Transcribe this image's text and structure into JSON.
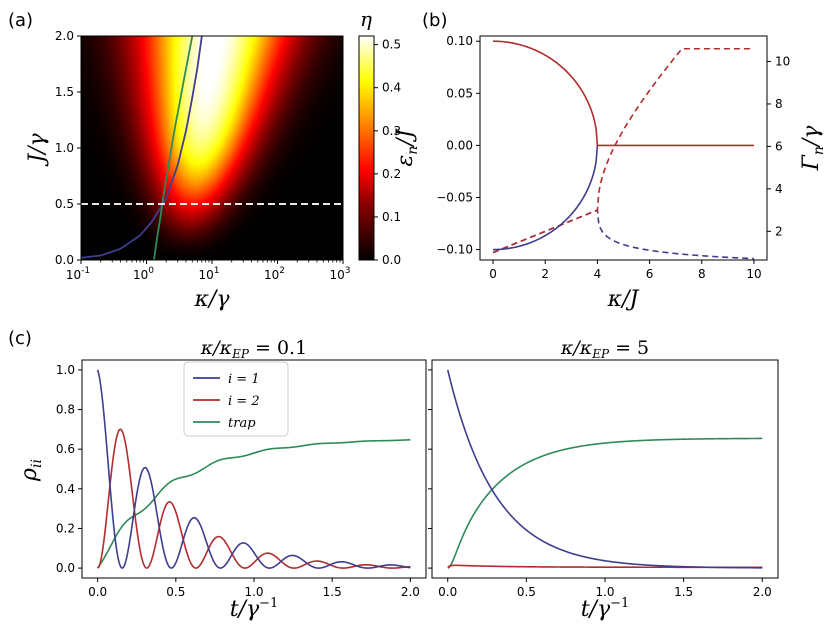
{
  "panels": {
    "a": "(a)",
    "b": "(b)",
    "c": "(c)"
  },
  "colors": {
    "blue": "#3f3d8f",
    "red": "#b22c2c",
    "green": "#2e8b57",
    "dashed_line": "#e8e8e8"
  },
  "chart_data": [
    {
      "id": "a",
      "type": "heatmap",
      "xlabel": "κ/γ",
      "ylabel": "J/γ",
      "colorbar_label": "η",
      "xscale": "log",
      "xlim": [
        0.1,
        1000
      ],
      "ylim": [
        0,
        2.0
      ],
      "xticks": [
        "10",
        "10",
        "10",
        "10",
        "10"
      ],
      "xtick_exps": [
        "-1",
        "0",
        "1",
        "2",
        "3"
      ],
      "yticks": [
        "0.0",
        "0.5",
        "1.0",
        "1.5",
        "2.0"
      ],
      "colorbar_ticks": [
        "0.0",
        "0.1",
        "0.2",
        "0.3",
        "0.4",
        "0.5"
      ],
      "colorbar_range": [
        0,
        0.52
      ],
      "colormap": "hot",
      "horizontal_dashed_line": 0.5,
      "curves": [
        {
          "color": "blue",
          "points": [
            [
              0.1,
              0.02
            ],
            [
              0.2,
              0.04
            ],
            [
              0.4,
              0.1
            ],
            [
              0.8,
              0.22
            ],
            [
              1.2,
              0.34
            ],
            [
              2.0,
              0.55
            ],
            [
              3.0,
              0.85
            ],
            [
              4.0,
              1.15
            ],
            [
              5.0,
              1.45
            ],
            [
              6.0,
              1.72
            ],
            [
              7.0,
              2.0
            ]
          ]
        },
        {
          "color": "green",
          "points": [
            [
              1.3,
              0.0
            ],
            [
              1.45,
              0.2
            ],
            [
              1.65,
              0.4
            ],
            [
              1.85,
              0.6
            ],
            [
              2.1,
              0.8
            ],
            [
              2.4,
              1.0
            ],
            [
              2.75,
              1.2
            ],
            [
              3.2,
              1.4
            ],
            [
              3.7,
              1.6
            ],
            [
              4.3,
              1.8
            ],
            [
              5.0,
              2.0
            ]
          ]
        }
      ]
    },
    {
      "id": "b",
      "type": "line",
      "xlabel": "κ/J",
      "ylabel": "ε_n/J",
      "ylabel_right": "Γ_n/γ",
      "xlim": [
        -0.5,
        10.5
      ],
      "ylim": [
        -0.11,
        0.105
      ],
      "ylim_right": [
        0.65,
        11.2
      ],
      "xticks": [
        "0",
        "2",
        "4",
        "6",
        "8",
        "10"
      ],
      "yticks": [
        "-0.10",
        "-0.05",
        "0.00",
        "0.05",
        "0.10"
      ],
      "yticks_right": [
        "2",
        "4",
        "6",
        "8",
        "10"
      ],
      "exceptional_point": 4,
      "series": [
        {
          "color": "red",
          "style": "solid",
          "axis": "left",
          "formula": "epsilon_upper"
        },
        {
          "color": "blue",
          "style": "solid",
          "axis": "left",
          "formula": "epsilon_lower"
        },
        {
          "color": "red",
          "style": "dashed",
          "axis": "right",
          "formula": "gamma_upper"
        },
        {
          "color": "blue",
          "style": "dashed",
          "axis": "right",
          "formula": "gamma_lower"
        }
      ]
    },
    {
      "id": "c1",
      "type": "line",
      "title": "κ/κ",
      "title_sub": "EP",
      "title_value": " = 0.1",
      "xlabel": "t/γ",
      "xlabel_sup": "−1",
      "ylabel": "ρ",
      "ylabel_sub": "ii",
      "xlim": [
        -0.1,
        2.1
      ],
      "ylim": [
        -0.05,
        1.05
      ],
      "xticks": [
        "0.0",
        "0.5",
        "1.0",
        "1.5",
        "2.0"
      ],
      "yticks": [
        "0.0",
        "0.2",
        "0.4",
        "0.6",
        "0.8",
        "1.0"
      ],
      "legend": {
        "placement": "upper-center",
        "entries": [
          {
            "label": "i = 1",
            "color": "blue"
          },
          {
            "label": "i = 2",
            "color": "red"
          },
          {
            "label": "trap",
            "color": "green"
          }
        ]
      },
      "series": [
        {
          "name": "i = 1",
          "color": "blue",
          "model": "underdamped_1"
        },
        {
          "name": "i = 2",
          "color": "red",
          "model": "underdamped_2"
        },
        {
          "name": "trap",
          "color": "green",
          "model": "underdamped_trap"
        }
      ],
      "params": {
        "omega": 10.0,
        "decay": 2.2,
        "trap_final": 0.655
      }
    },
    {
      "id": "c2",
      "type": "line",
      "title": "κ/κ",
      "title_sub": "EP",
      "title_value": " = 5",
      "xlabel": "t/γ",
      "xlabel_sup": "−1",
      "xlim": [
        -0.1,
        2.1
      ],
      "ylim": [
        -0.05,
        1.05
      ],
      "xticks": [
        "0.0",
        "0.5",
        "1.0",
        "1.5",
        "2.0"
      ],
      "series": [
        {
          "name": "i = 1",
          "color": "blue",
          "model": "overdamped_1"
        },
        {
          "name": "i = 2",
          "color": "red",
          "model": "overdamped_2"
        },
        {
          "name": "trap",
          "color": "green",
          "model": "overdamped_trap"
        }
      ],
      "params": {
        "rate": 3.3,
        "trap_final": 0.655
      }
    }
  ]
}
